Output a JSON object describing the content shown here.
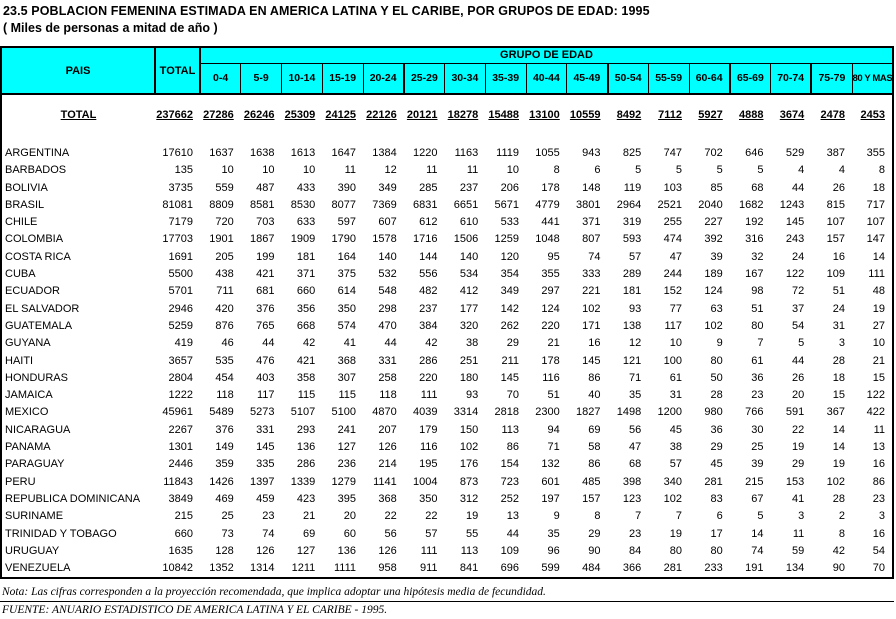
{
  "title": "23.5 POBLACION FEMENINA ESTIMADA EN AMERICA LATINA Y EL CARIBE, POR GRUPOS DE EDAD: 1995",
  "subtitle": "( Miles de personas a mitad de año )",
  "colors": {
    "header_bg": "#00ffff",
    "border": "#000000",
    "text": "#000000",
    "page_bg": "#ffffff"
  },
  "table": {
    "pais_header": "PAIS",
    "total_header": "TOTAL",
    "group_header": "GRUPO DE EDAD",
    "age_columns": [
      "0-4",
      "5-9",
      "10-14",
      "15-19",
      "20-24",
      "25-29",
      "30-34",
      "35-39",
      "40-44",
      "45-49",
      "50-54",
      "55-59",
      "60-64",
      "65-69",
      "70-74",
      "75-79",
      "80 Y MAS"
    ],
    "total_row": {
      "label": "TOTAL",
      "total": 237662,
      "values": [
        27286,
        26246,
        25309,
        24125,
        22126,
        20121,
        18278,
        15488,
        13100,
        10559,
        8492,
        7112,
        5927,
        4888,
        3674,
        2478,
        2453
      ]
    },
    "rows": [
      {
        "pais": "ARGENTINA",
        "total": 17610,
        "values": [
          1637,
          1638,
          1613,
          1647,
          1384,
          1220,
          1163,
          1119,
          1055,
          943,
          825,
          747,
          702,
          646,
          529,
          387,
          355
        ]
      },
      {
        "pais": "BARBADOS",
        "total": 135,
        "values": [
          10,
          10,
          10,
          11,
          12,
          11,
          11,
          10,
          8,
          6,
          5,
          5,
          5,
          5,
          4,
          4,
          8
        ]
      },
      {
        "pais": "BOLIVIA",
        "total": 3735,
        "values": [
          559,
          487,
          433,
          390,
          349,
          285,
          237,
          206,
          178,
          148,
          119,
          103,
          85,
          68,
          44,
          26,
          18
        ]
      },
      {
        "pais": "BRASIL",
        "total": 81081,
        "values": [
          8809,
          8581,
          8530,
          8077,
          7369,
          6831,
          6651,
          5671,
          4779,
          3801,
          2964,
          2521,
          2040,
          1682,
          1243,
          815,
          717
        ]
      },
      {
        "pais": "CHILE",
        "total": 7179,
        "values": [
          720,
          703,
          633,
          597,
          607,
          612,
          610,
          533,
          441,
          371,
          319,
          255,
          227,
          192,
          145,
          107,
          107
        ]
      },
      {
        "pais": "COLOMBIA",
        "total": 17703,
        "values": [
          1901,
          1867,
          1909,
          1790,
          1578,
          1716,
          1506,
          1259,
          1048,
          807,
          593,
          474,
          392,
          316,
          243,
          157,
          147
        ]
      },
      {
        "pais": "COSTA RICA",
        "total": 1691,
        "values": [
          205,
          199,
          181,
          164,
          140,
          144,
          140,
          120,
          95,
          74,
          57,
          47,
          39,
          32,
          24,
          16,
          14
        ]
      },
      {
        "pais": "CUBA",
        "total": 5500,
        "values": [
          438,
          421,
          371,
          375,
          532,
          556,
          534,
          354,
          355,
          333,
          289,
          244,
          189,
          167,
          122,
          109,
          111
        ]
      },
      {
        "pais": "ECUADOR",
        "total": 5701,
        "values": [
          711,
          681,
          660,
          614,
          548,
          482,
          412,
          349,
          297,
          221,
          181,
          152,
          124,
          98,
          72,
          51,
          48
        ]
      },
      {
        "pais": "EL SALVADOR",
        "total": 2946,
        "values": [
          420,
          376,
          356,
          350,
          298,
          237,
          177,
          142,
          124,
          102,
          93,
          77,
          63,
          51,
          37,
          24,
          19
        ]
      },
      {
        "pais": "GUATEMALA",
        "total": 5259,
        "values": [
          876,
          765,
          668,
          574,
          470,
          384,
          320,
          262,
          220,
          171,
          138,
          117,
          102,
          80,
          54,
          31,
          27
        ]
      },
      {
        "pais": "GUYANA",
        "total": 419,
        "values": [
          46,
          44,
          42,
          41,
          44,
          42,
          38,
          29,
          21,
          16,
          12,
          10,
          9,
          7,
          5,
          3,
          10
        ]
      },
      {
        "pais": "HAITI",
        "total": 3657,
        "values": [
          535,
          476,
          421,
          368,
          331,
          286,
          251,
          211,
          178,
          145,
          121,
          100,
          80,
          61,
          44,
          28,
          21
        ]
      },
      {
        "pais": "HONDURAS",
        "total": 2804,
        "values": [
          454,
          403,
          358,
          307,
          258,
          220,
          180,
          145,
          116,
          86,
          71,
          61,
          50,
          36,
          26,
          18,
          15
        ]
      },
      {
        "pais": "JAMAICA",
        "total": 1222,
        "values": [
          118,
          117,
          115,
          115,
          118,
          111,
          93,
          70,
          51,
          40,
          35,
          31,
          28,
          23,
          20,
          15,
          122
        ]
      },
      {
        "pais": "MEXICO",
        "total": 45961,
        "values": [
          5489,
          5273,
          5107,
          5100,
          4870,
          4039,
          3314,
          2818,
          2300,
          1827,
          1498,
          1200,
          980,
          766,
          591,
          367,
          422
        ]
      },
      {
        "pais": "NICARAGUA",
        "total": 2267,
        "values": [
          376,
          331,
          293,
          241,
          207,
          179,
          150,
          113,
          94,
          69,
          56,
          45,
          36,
          30,
          22,
          14,
          11
        ]
      },
      {
        "pais": "PANAMA",
        "total": 1301,
        "values": [
          149,
          145,
          136,
          127,
          126,
          116,
          102,
          86,
          71,
          58,
          47,
          38,
          29,
          25,
          19,
          14,
          13
        ]
      },
      {
        "pais": "PARAGUAY",
        "total": 2446,
        "values": [
          359,
          335,
          286,
          236,
          214,
          195,
          176,
          154,
          132,
          86,
          68,
          57,
          45,
          39,
          29,
          19,
          16
        ]
      },
      {
        "pais": "PERU",
        "total": 11843,
        "values": [
          1426,
          1397,
          1339,
          1279,
          1141,
          1004,
          873,
          723,
          601,
          485,
          398,
          340,
          281,
          215,
          153,
          102,
          86
        ]
      },
      {
        "pais": "REPUBLICA DOMINICANA",
        "total": 3849,
        "values": [
          469,
          459,
          423,
          395,
          368,
          350,
          312,
          252,
          197,
          157,
          123,
          102,
          83,
          67,
          41,
          28,
          23
        ]
      },
      {
        "pais": "SURINAME",
        "total": 215,
        "values": [
          25,
          23,
          21,
          20,
          22,
          22,
          19,
          13,
          9,
          8,
          7,
          7,
          6,
          5,
          3,
          2,
          3
        ]
      },
      {
        "pais": "TRINIDAD Y TOBAGO",
        "total": 660,
        "values": [
          73,
          74,
          69,
          60,
          56,
          57,
          55,
          44,
          35,
          29,
          23,
          19,
          17,
          14,
          11,
          8,
          16
        ]
      },
      {
        "pais": "URUGUAY",
        "total": 1635,
        "values": [
          128,
          126,
          127,
          136,
          126,
          111,
          113,
          109,
          96,
          90,
          84,
          80,
          80,
          74,
          59,
          42,
          54
        ]
      },
      {
        "pais": "VENEZUELA",
        "total": 10842,
        "values": [
          1352,
          1314,
          1211,
          1111,
          958,
          911,
          841,
          696,
          599,
          484,
          366,
          281,
          233,
          191,
          134,
          90,
          70
        ]
      }
    ]
  },
  "footer": {
    "nota": "Nota: Las cifras corresponden a la proyección recomendada, que implica adoptar una hipótesis media de fecundidad.",
    "fuente": "FUENTE: ANUARIO ESTADISTICO DE AMERICA LATINA Y EL CARIBE - 1995."
  }
}
